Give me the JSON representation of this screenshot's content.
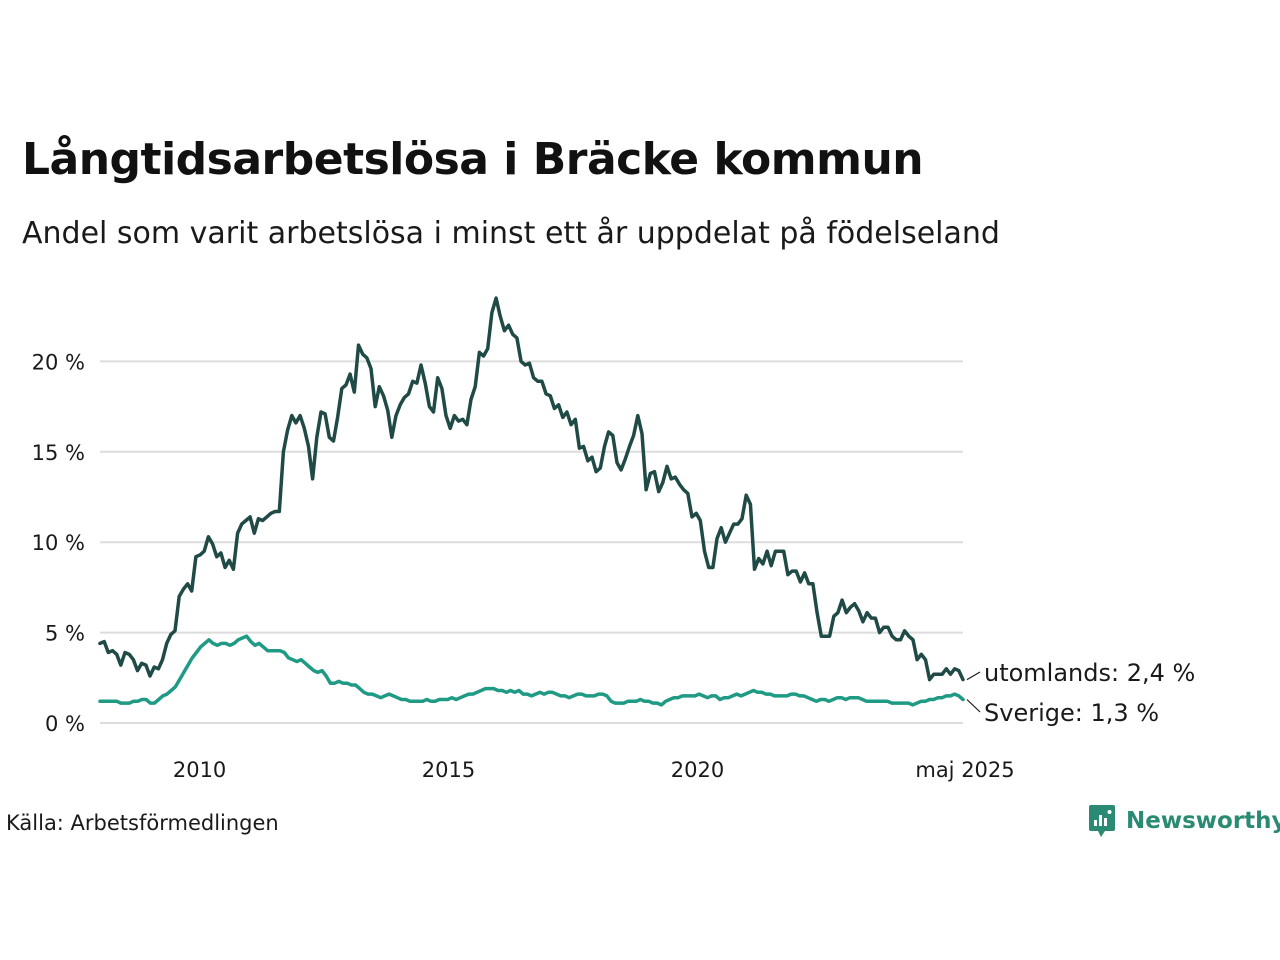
{
  "title": "Långtidsarbetslösa i Bräcke kommun",
  "subtitle": "Andel som varit arbetslösa i minst ett år uppdelat på födelseland",
  "source": "Källa: Arbetsförmedlingen",
  "brand": {
    "name": "Newsworthy",
    "icon": "newsworthy-logo-icon",
    "color": "#2a8a73"
  },
  "chart_data": {
    "type": "line",
    "x_tick_labels": [
      "2010",
      "2015",
      "2020",
      "maj 2025"
    ],
    "y_tick_labels": [
      "0 %",
      "5 %",
      "10 %",
      "15 %",
      "20 %"
    ],
    "ylim": [
      0,
      23.5
    ],
    "xlim": [
      "2008-01",
      "2025-05"
    ],
    "grid": "horizontal",
    "end_labels": [
      "utomlands: 2,4 %",
      "Sverige: 1,3 %"
    ],
    "x_start": "2008-01",
    "x_step": "1 month",
    "series": [
      {
        "name": "utomlands",
        "color": "#1f4a45",
        "values": [
          4.4,
          4.5,
          3.9,
          4.0,
          3.8,
          3.2,
          3.9,
          3.8,
          3.5,
          2.9,
          3.3,
          3.2,
          2.6,
          3.1,
          3.0,
          3.5,
          4.4,
          4.9,
          5.1,
          7.0,
          7.4,
          7.7,
          7.3,
          9.2,
          9.3,
          9.5,
          10.3,
          9.9,
          9.2,
          9.4,
          8.6,
          9.0,
          8.5,
          10.5,
          11.0,
          11.2,
          11.4,
          10.5,
          11.3,
          11.2,
          11.4,
          11.6,
          11.7,
          11.7,
          15.0,
          16.2,
          17.0,
          16.6,
          17.0,
          16.3,
          15.3,
          13.5,
          15.8,
          17.2,
          17.1,
          15.8,
          15.6,
          16.9,
          18.5,
          18.7,
          19.3,
          18.3,
          20.9,
          20.4,
          20.2,
          19.6,
          17.5,
          18.6,
          18.1,
          17.3,
          15.8,
          17.0,
          17.6,
          18.0,
          18.2,
          18.9,
          18.8,
          19.8,
          18.8,
          17.5,
          17.2,
          19.1,
          18.5,
          17.0,
          16.3,
          17.0,
          16.7,
          16.8,
          16.5,
          17.9,
          18.6,
          20.5,
          20.3,
          20.7,
          22.7,
          23.5,
          22.5,
          21.7,
          22.0,
          21.5,
          21.3,
          20.0,
          19.8,
          19.9,
          19.1,
          18.9,
          18.9,
          18.2,
          18.1,
          17.4,
          17.6,
          16.9,
          17.2,
          16.5,
          16.8,
          15.2,
          15.3,
          14.5,
          14.7,
          13.9,
          14.1,
          15.3,
          16.1,
          15.9,
          14.4,
          14.0,
          14.6,
          15.3,
          15.9,
          17.0,
          16.0,
          12.9,
          13.8,
          13.9,
          12.8,
          13.3,
          14.2,
          13.5,
          13.6,
          13.2,
          12.9,
          12.7,
          11.4,
          11.6,
          11.2,
          9.5,
          8.6,
          8.6,
          10.2,
          10.8,
          10.0,
          10.5,
          11.0,
          11.0,
          11.3,
          12.6,
          12.1,
          8.5,
          9.1,
          8.8,
          9.5,
          8.7,
          9.5,
          9.5,
          9.5,
          8.2,
          8.4,
          8.4,
          7.8,
          8.3,
          7.7,
          7.7,
          6.1,
          4.8,
          4.8,
          4.8,
          5.9,
          6.1,
          6.8,
          6.1,
          6.4,
          6.6,
          6.2,
          5.6,
          6.1,
          5.8,
          5.8,
          5.0,
          5.3,
          5.3,
          4.8,
          4.6,
          4.6,
          5.1,
          4.8,
          4.6,
          3.5,
          3.8,
          3.5,
          2.4,
          2.7,
          2.7,
          2.7,
          3.0,
          2.7,
          3.0,
          2.9,
          2.4
        ]
      },
      {
        "name": "Sverige",
        "color": "#1f9a85",
        "values": [
          1.2,
          1.2,
          1.2,
          1.2,
          1.2,
          1.1,
          1.1,
          1.1,
          1.2,
          1.2,
          1.3,
          1.3,
          1.1,
          1.1,
          1.3,
          1.5,
          1.6,
          1.8,
          2.0,
          2.4,
          2.8,
          3.2,
          3.6,
          3.9,
          4.2,
          4.4,
          4.6,
          4.4,
          4.3,
          4.4,
          4.4,
          4.3,
          4.4,
          4.6,
          4.7,
          4.8,
          4.5,
          4.3,
          4.4,
          4.2,
          4.0,
          4.0,
          4.0,
          4.0,
          3.9,
          3.6,
          3.5,
          3.4,
          3.5,
          3.3,
          3.1,
          2.9,
          2.8,
          2.9,
          2.6,
          2.2,
          2.2,
          2.3,
          2.2,
          2.2,
          2.1,
          2.1,
          1.9,
          1.7,
          1.6,
          1.6,
          1.5,
          1.4,
          1.5,
          1.6,
          1.5,
          1.4,
          1.3,
          1.3,
          1.2,
          1.2,
          1.2,
          1.2,
          1.3,
          1.2,
          1.2,
          1.3,
          1.3,
          1.3,
          1.4,
          1.3,
          1.4,
          1.5,
          1.6,
          1.6,
          1.7,
          1.8,
          1.9,
          1.9,
          1.9,
          1.8,
          1.8,
          1.7,
          1.8,
          1.7,
          1.8,
          1.6,
          1.6,
          1.5,
          1.6,
          1.7,
          1.6,
          1.7,
          1.7,
          1.6,
          1.5,
          1.5,
          1.4,
          1.5,
          1.6,
          1.6,
          1.5,
          1.5,
          1.5,
          1.6,
          1.6,
          1.5,
          1.2,
          1.1,
          1.1,
          1.1,
          1.2,
          1.2,
          1.2,
          1.3,
          1.2,
          1.2,
          1.1,
          1.1,
          1.0,
          1.2,
          1.3,
          1.4,
          1.4,
          1.5,
          1.5,
          1.5,
          1.5,
          1.6,
          1.5,
          1.4,
          1.5,
          1.5,
          1.3,
          1.4,
          1.4,
          1.5,
          1.6,
          1.5,
          1.6,
          1.7,
          1.8,
          1.7,
          1.7,
          1.6,
          1.6,
          1.5,
          1.5,
          1.5,
          1.5,
          1.6,
          1.6,
          1.5,
          1.5,
          1.4,
          1.3,
          1.2,
          1.3,
          1.3,
          1.2,
          1.3,
          1.4,
          1.4,
          1.3,
          1.4,
          1.4,
          1.4,
          1.3,
          1.2,
          1.2,
          1.2,
          1.2,
          1.2,
          1.2,
          1.1,
          1.1,
          1.1,
          1.1,
          1.1,
          1.0,
          1.1,
          1.2,
          1.2,
          1.3,
          1.3,
          1.4,
          1.4,
          1.5,
          1.5,
          1.6,
          1.5,
          1.3
        ]
      }
    ]
  }
}
